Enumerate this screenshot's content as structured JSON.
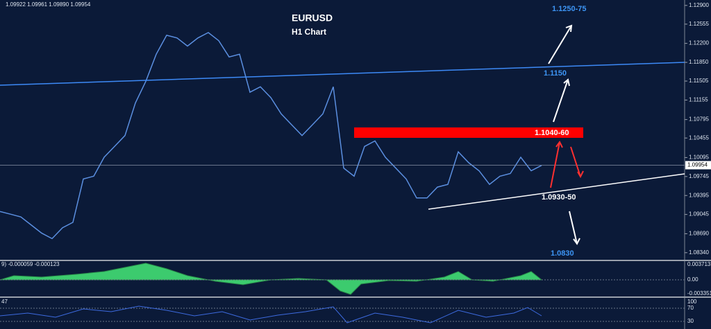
{
  "chart_data": {
    "type": "line",
    "header": "1.09922 1.09961 1.09890 1.09954",
    "title": "EURUSD",
    "subtitle": "H1 Chart",
    "color": "#5b8fe0",
    "values": [
      1.091,
      1.0905,
      1.09,
      1.0885,
      1.087,
      1.086,
      1.088,
      1.089,
      1.097,
      1.0975,
      1.101,
      1.103,
      1.105,
      1.111,
      1.115,
      1.12,
      1.1235,
      1.123,
      1.1215,
      1.123,
      1.124,
      1.1225,
      1.1195,
      1.12,
      1.113,
      1.114,
      1.112,
      1.109,
      1.107,
      1.105,
      1.107,
      1.109,
      1.114,
      1.099,
      1.0975,
      1.103,
      1.104,
      1.101,
      1.099,
      1.097,
      1.0935,
      1.0935,
      1.0955,
      1.096,
      1.102,
      1.1,
      1.0985,
      1.096,
      1.0975,
      1.098,
      1.101,
      1.0985,
      1.0995
    ],
    "ylim": [
      1.0821,
      1.13
    ],
    "yticks": [
      {
        "value": 1.129,
        "label": "1.12900"
      },
      1.12555,
      {
        "value": 1.122,
        "label": "1.12200"
      },
      {
        "value": 1.1185,
        "label": "1.11850"
      },
      1.11505,
      1.11155,
      1.10795,
      1.10455,
      1.10095,
      1.09745,
      1.09395,
      1.09045,
      {
        "value": 1.0869,
        "label": "1.08690"
      },
      {
        "value": 1.0834,
        "label": "1.08340"
      }
    ],
    "last_price": 1.09954,
    "annotations": [
      "1.1250-75",
      "1.1150",
      "1.1040-60",
      "1.0930-50",
      "1.0830"
    ],
    "indicators": {
      "macd": {
        "header": "9) -0.000059 -0.000123",
        "ticks": [
          "0.003713",
          "0.00",
          "-0.003351"
        ]
      },
      "rsi": {
        "header": "47",
        "ticks": [
          "100",
          "70",
          "30"
        ]
      }
    }
  }
}
